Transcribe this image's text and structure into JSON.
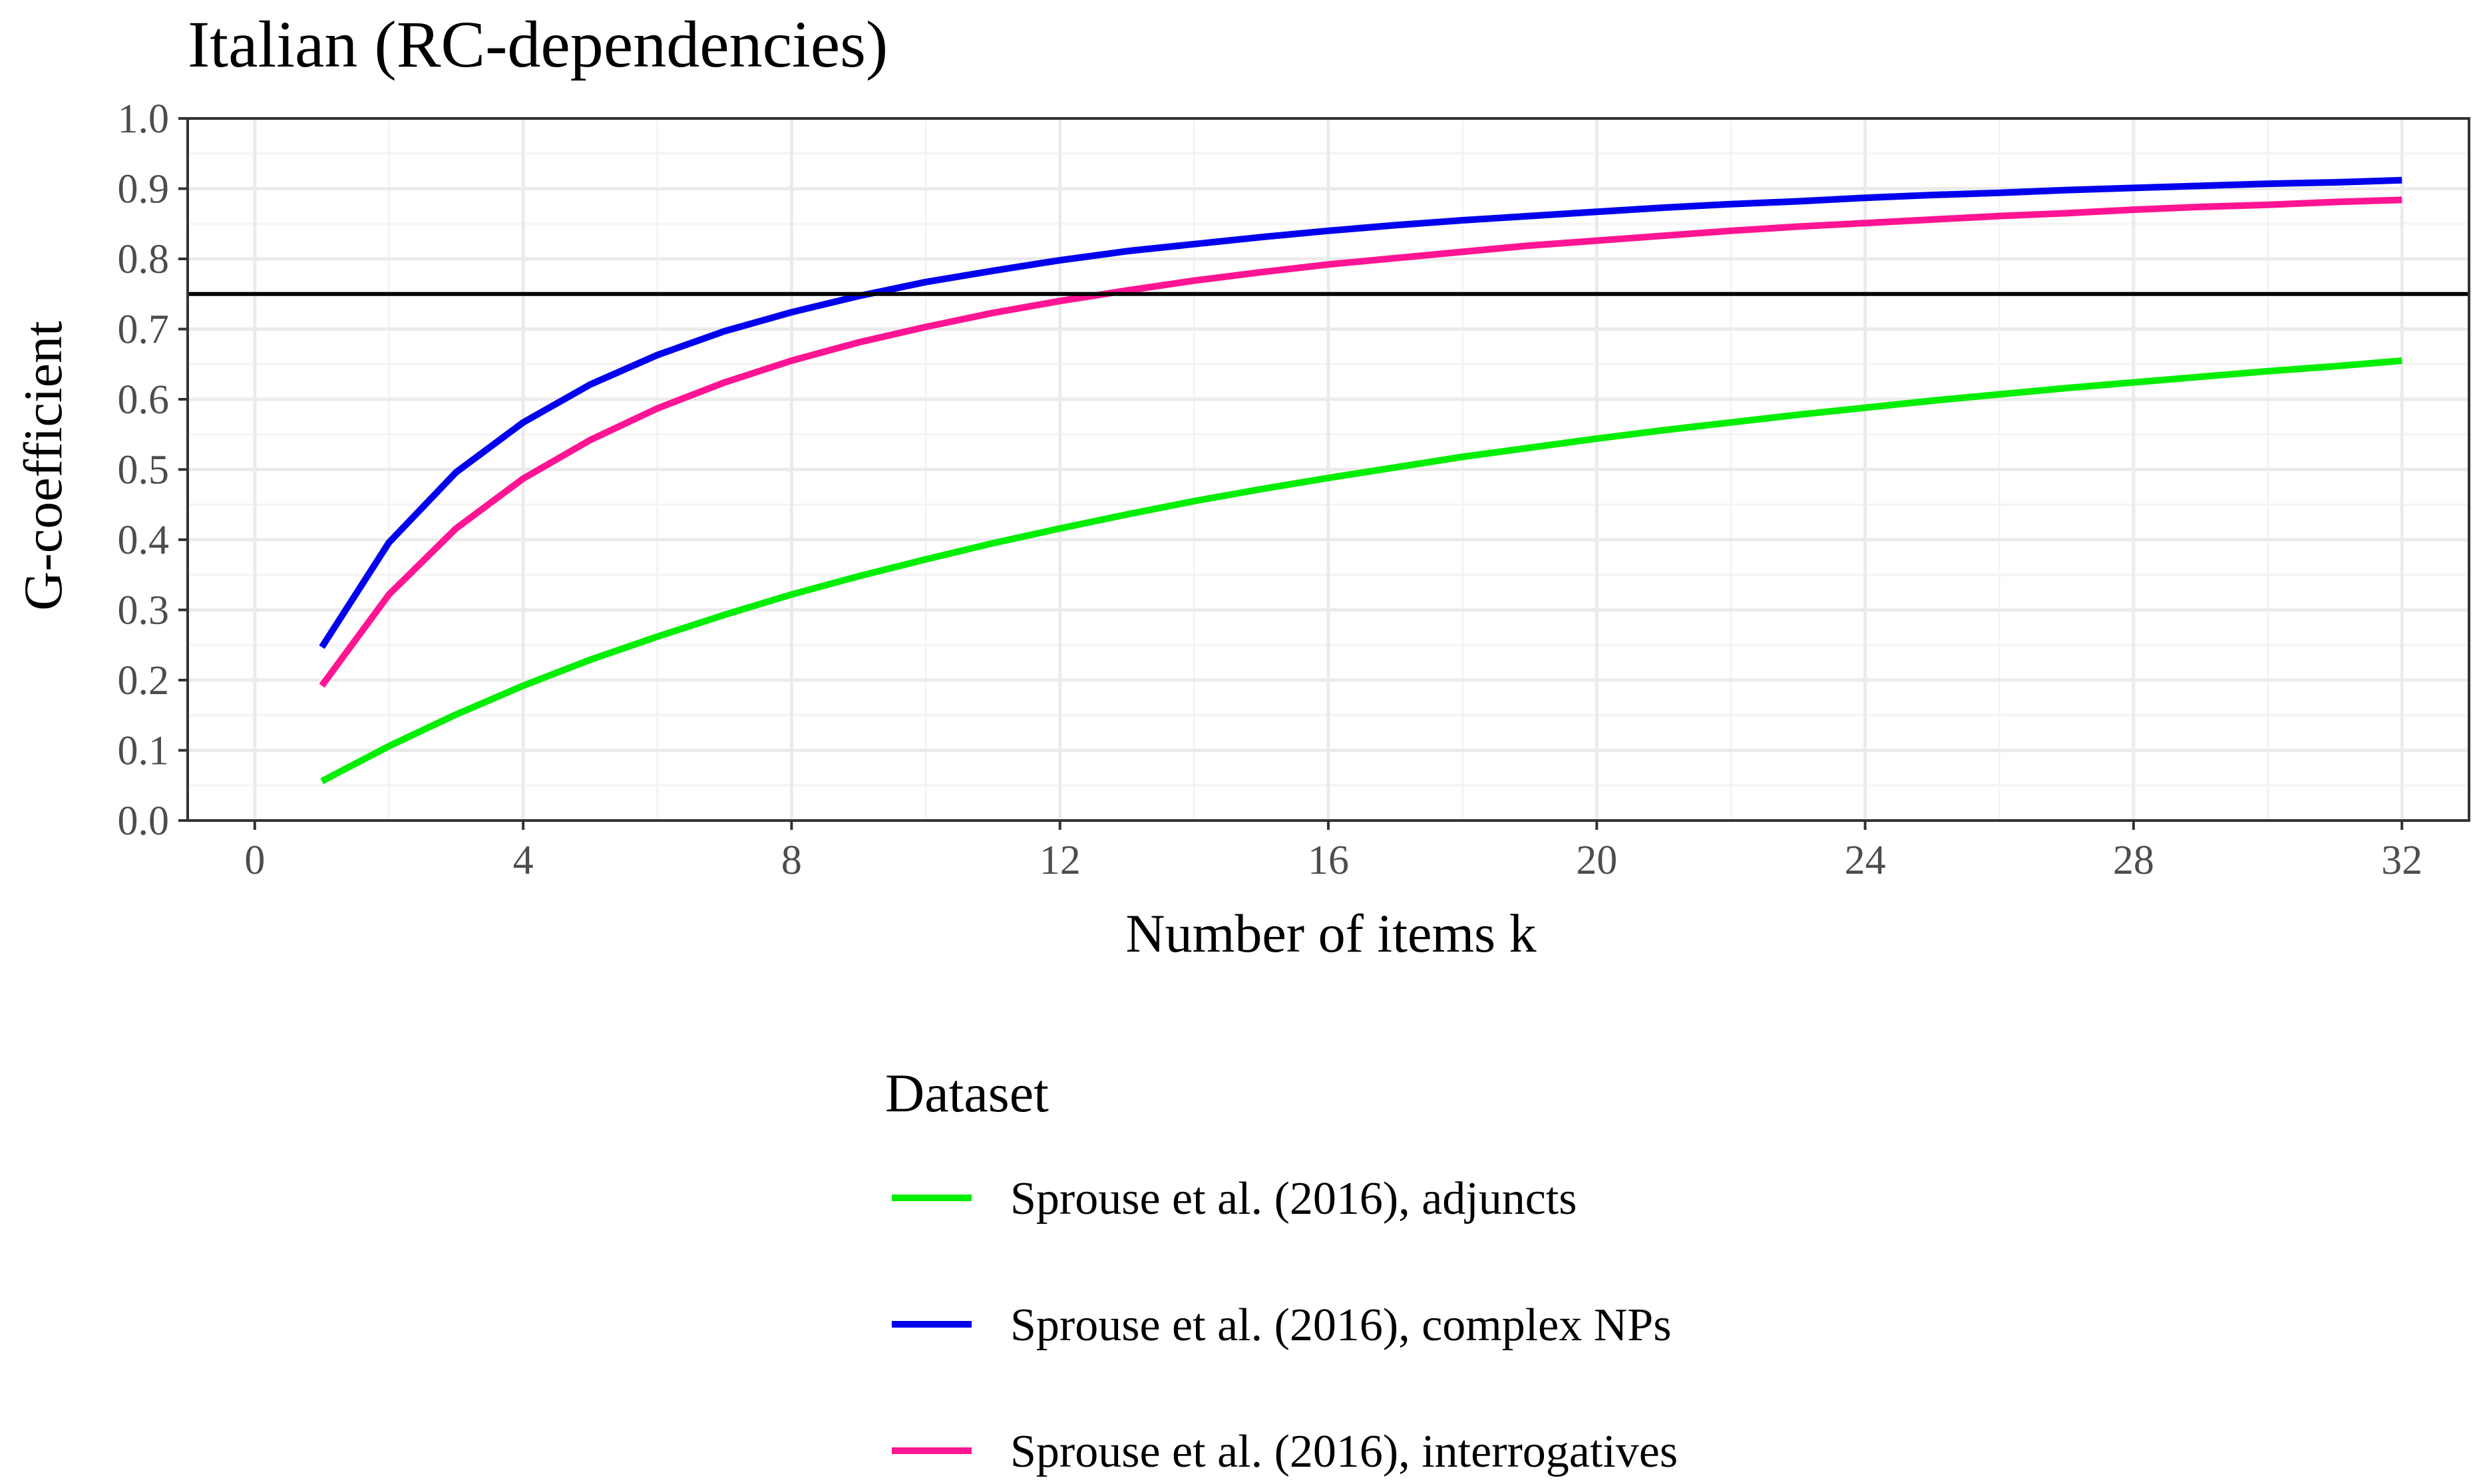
{
  "chart_data": {
    "type": "line",
    "title": "Italian (RC-dependencies)",
    "xlabel": "Number of items k",
    "ylabel": "G-coefficient",
    "xlim": [
      -1,
      33
    ],
    "ylim": [
      0,
      1
    ],
    "x_ticks": [
      0,
      4,
      8,
      12,
      16,
      20,
      24,
      28,
      32
    ],
    "y_ticks": [
      0.0,
      0.1,
      0.2,
      0.3,
      0.4,
      0.5,
      0.6,
      0.7,
      0.8,
      0.9,
      1.0
    ],
    "x_tick_labels": [
      "0",
      "4",
      "8",
      "12",
      "16",
      "20",
      "24",
      "28",
      "32"
    ],
    "y_tick_labels": [
      "0.0",
      "0.1",
      "0.2",
      "0.3",
      "0.4",
      "0.5",
      "0.6",
      "0.7",
      "0.8",
      "0.9",
      "1.0"
    ],
    "grid": true,
    "reference_line": {
      "y": 0.75,
      "color": "#000000"
    },
    "legend": {
      "title": "Dataset",
      "position": "bottom"
    },
    "x": [
      1,
      2,
      3,
      4,
      5,
      6,
      7,
      8,
      9,
      10,
      11,
      12,
      13,
      14,
      15,
      16,
      17,
      18,
      19,
      20,
      21,
      22,
      23,
      24,
      25,
      26,
      27,
      28,
      29,
      30,
      31,
      32
    ],
    "series": [
      {
        "name": "Sprouse et al. (2016), adjuncts",
        "color": "#00ee00",
        "values": [
          0.056,
          0.106,
          0.151,
          0.192,
          0.229,
          0.262,
          0.293,
          0.322,
          0.348,
          0.372,
          0.395,
          0.416,
          0.436,
          0.455,
          0.472,
          0.488,
          0.503,
          0.518,
          0.531,
          0.544,
          0.556,
          0.567,
          0.578,
          0.588,
          0.598,
          0.607,
          0.616,
          0.624,
          0.632,
          0.64,
          0.647,
          0.655
        ]
      },
      {
        "name": "Sprouse et al. (2016), complex NPs",
        "color": "#0000ee",
        "values": [
          0.247,
          0.396,
          0.496,
          0.567,
          0.621,
          0.663,
          0.697,
          0.724,
          0.747,
          0.767,
          0.783,
          0.798,
          0.811,
          0.821,
          0.831,
          0.84,
          0.848,
          0.855,
          0.861,
          0.867,
          0.873,
          0.878,
          0.882,
          0.887,
          0.891,
          0.894,
          0.898,
          0.901,
          0.904,
          0.907,
          0.909,
          0.912
        ]
      },
      {
        "name": "Sprouse et al. (2016), interrogatives",
        "color": "#ff1493",
        "values": [
          0.192,
          0.322,
          0.416,
          0.487,
          0.542,
          0.587,
          0.624,
          0.655,
          0.681,
          0.703,
          0.723,
          0.74,
          0.755,
          0.769,
          0.781,
          0.792,
          0.801,
          0.81,
          0.819,
          0.826,
          0.833,
          0.84,
          0.846,
          0.851,
          0.856,
          0.861,
          0.865,
          0.87,
          0.874,
          0.877,
          0.881,
          0.884
        ]
      }
    ]
  }
}
